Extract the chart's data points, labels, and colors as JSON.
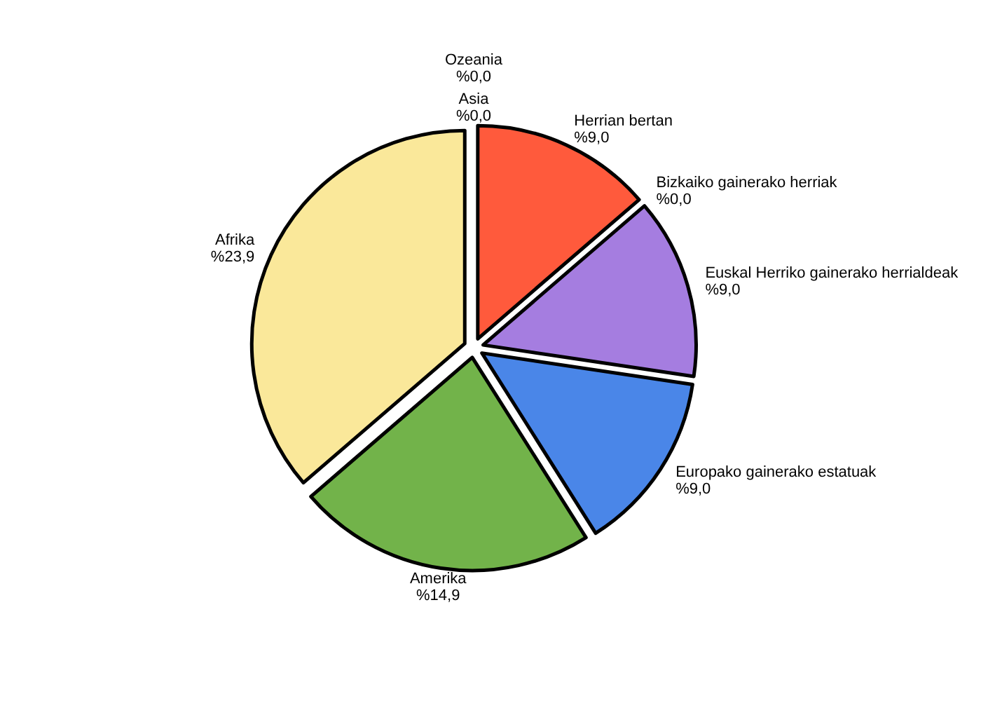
{
  "chart_data": {
    "type": "pie",
    "categories": [
      "Herrian bertan",
      "Bizkaiko gainerako herriak",
      "Euskal Herriko gainerako herrialdeak",
      "Europako gainerako estatuak",
      "Amerika",
      "Afrika",
      "Asia",
      "Ozeania"
    ],
    "values": [
      9.0,
      0.0,
      9.0,
      9.0,
      14.9,
      23.9,
      0.0,
      0.0
    ],
    "value_labels": [
      "%9,0",
      "%0,0",
      "%9,0",
      "%9,0",
      "%14,9",
      "%23,9",
      "%0,0",
      "%0,0"
    ],
    "colors": [
      "#ff5a3c",
      "#222222",
      "#a57de0",
      "#4a86e8",
      "#72b34a",
      "#fae89a",
      "#e06666",
      "#999999"
    ],
    "legend": false
  }
}
